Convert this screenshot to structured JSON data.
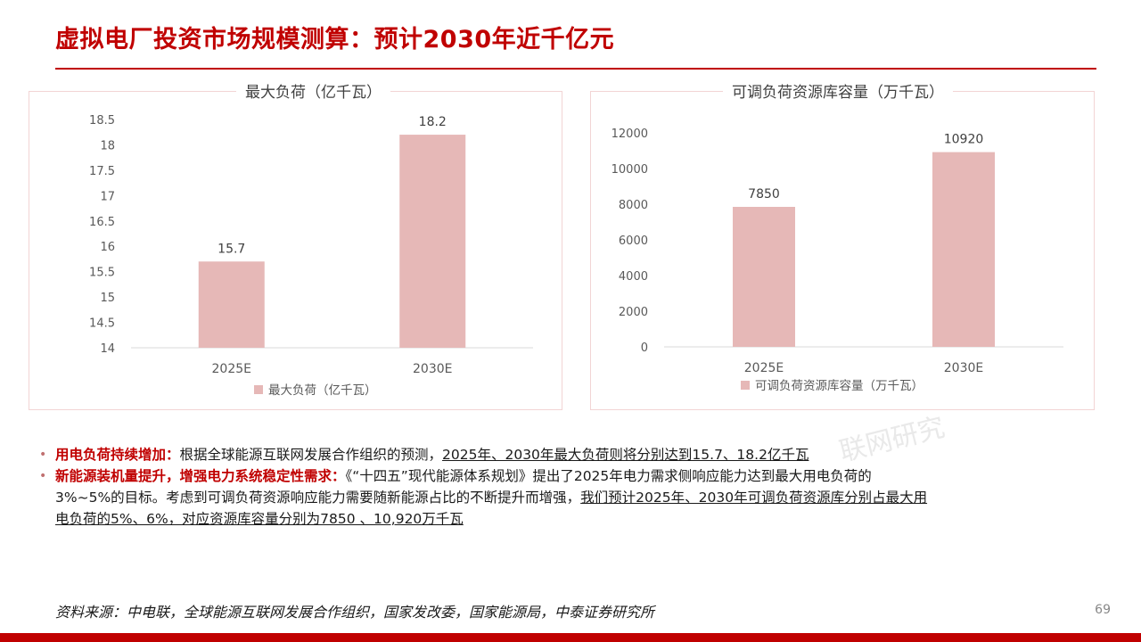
{
  "header": {
    "title": "虚拟电厂投资市场规模测算：预计2030年近千亿元"
  },
  "colors": {
    "accent": "#c00000",
    "bar": "#e6b8b7"
  },
  "chart_data": [
    {
      "type": "bar",
      "title": "最大负荷（亿千瓦）",
      "categories": [
        "2025E",
        "2030E"
      ],
      "series": [
        {
          "name": "最大负荷（亿千瓦）",
          "values": [
            15.7,
            18.2
          ]
        }
      ],
      "ylim": [
        14,
        18.5
      ],
      "yticks": [
        "14",
        "14.5",
        "15",
        "15.5",
        "16",
        "16.5",
        "17",
        "17.5",
        "18",
        "18.5"
      ],
      "data_labels": [
        "15.7",
        "18.2"
      ],
      "legend": "bottom-left",
      "grid": false
    },
    {
      "type": "bar",
      "title": "可调负荷资源库容量（万千瓦）",
      "categories": [
        "2025E",
        "2030E"
      ],
      "series": [
        {
          "name": "可调负荷资源库容量（万千瓦）",
          "values": [
            7850,
            10920
          ]
        }
      ],
      "ylim": [
        0,
        12000
      ],
      "yticks": [
        "0",
        "2000",
        "4000",
        "6000",
        "8000",
        "10000",
        "12000"
      ],
      "data_labels": [
        "7850",
        "10920"
      ],
      "legend": "bottom-left",
      "grid": false
    }
  ],
  "bullets": [
    {
      "keyword": "用电负荷持续增加：",
      "text": "根据全球能源互联网发展合作组织的预测，",
      "underlined": "2025年、2030年最大负荷则将分别达到15.7、18.2亿千瓦"
    },
    {
      "keyword": "新能源装机量提升，增强电力系统稳定性需求：",
      "text": "《“十四五”现代能源体系规划》提出了2025年电力需求侧响应能力达到最大用电负荷的",
      "text2": "3%~5%的目标。考虑到可调负荷资源响应能力需要随新能源占比的不断提升而增强，",
      "underlined": "我们预计2025年、2030年可调负荷资源库分别占最大用",
      "underlined2": "电负荷的5%、6%，对应资源库容量分别为7850 、10,920万千瓦"
    }
  ],
  "footer": {
    "source": "资料来源：中电联，全球能源互联网发展合作组织，国家发改委，国家能源局，中泰证券研究所",
    "page_number": "69"
  },
  "watermark": "联网研究"
}
